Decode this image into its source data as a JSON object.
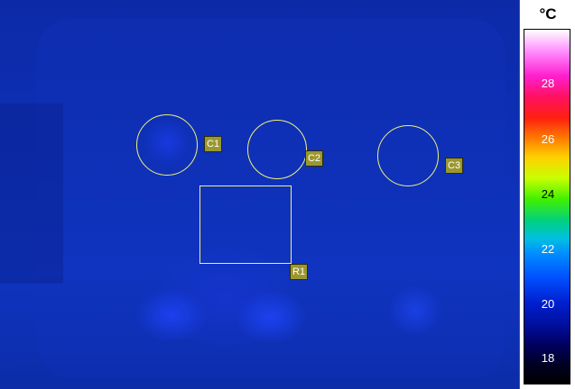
{
  "scale": {
    "unit": "°C",
    "ticks": [
      "28",
      "26",
      "24",
      "22",
      "20",
      "18"
    ]
  },
  "rois": {
    "c1": "C1",
    "c2": "C2",
    "c3": "C3",
    "r1": "R1"
  },
  "colors": {
    "roi_outline": "#f1f27a",
    "label_bg": "#9a9730",
    "background": "#0e31b8"
  }
}
